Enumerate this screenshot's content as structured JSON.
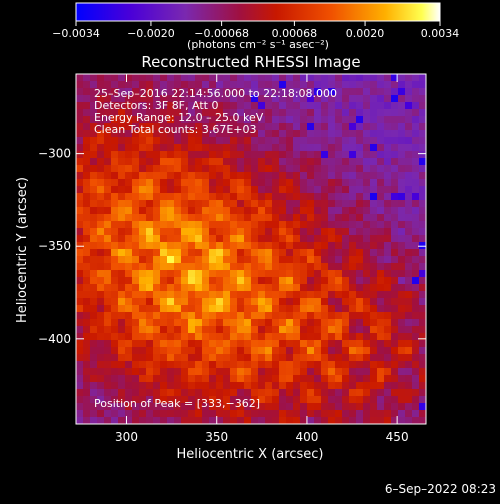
{
  "chart_data": {
    "type": "heatmap",
    "title": "Reconstructed RHESSI Image",
    "xlabel": "Heliocentric X (arcsec)",
    "ylabel": "Heliocentric Y (arcsec)",
    "xlim": [
      272,
      466
    ],
    "ylim": [
      -446,
      -257
    ],
    "x_ticks": [
      {
        "value": 300,
        "label": "300"
      },
      {
        "value": 350,
        "label": "350"
      },
      {
        "value": 400,
        "label": "400"
      },
      {
        "value": 450,
        "label": "450"
      }
    ],
    "y_ticks": [
      {
        "value": -300,
        "label": "−300"
      },
      {
        "value": -350,
        "label": "−350"
      },
      {
        "value": -400,
        "label": "−400"
      }
    ],
    "colorbar": {
      "range": [
        -0.0034,
        0.0034
      ],
      "ticks": [
        {
          "value": -0.0034,
          "label": "−0.0034"
        },
        {
          "value": -0.002,
          "label": "−0.0020"
        },
        {
          "value": -0.00068,
          "label": "−0.00068"
        },
        {
          "value": 0.00068,
          "label": "0.00068"
        },
        {
          "value": 0.002,
          "label": "0.0020"
        },
        {
          "value": 0.0034,
          "label": "0.0034"
        }
      ],
      "unit_label": "(photons cm⁻² s⁻¹ asec⁻²)",
      "colormap": [
        "#0000ff",
        "#5a00c8",
        "#7b2aa6",
        "#a01020",
        "#d02000",
        "#ff6000",
        "#ffb000",
        "#ffff40",
        "#ffffff"
      ]
    },
    "peak": {
      "x": 333,
      "y": -362
    },
    "grid": false,
    "legend": "none"
  },
  "annotations": [
    "25–Sep–2016 22:14:56.000 to 22:18:08.000",
    "Detectors: 3F 8F, Att 0",
    "Energy Range: 12.0 – 25.0 keV",
    "Clean     Total counts: 3.67E+03"
  ],
  "peak_label": "Position of Peak = [333,−362]",
  "timestamp": "6–Sep–2022 08:23"
}
